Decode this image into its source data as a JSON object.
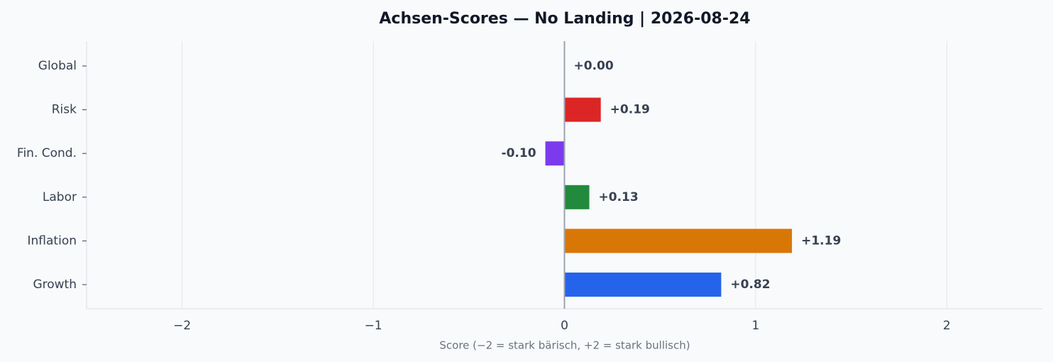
{
  "chart_data": {
    "type": "barh",
    "title": "Achsen-Scores — No Landing | 2026-08-24",
    "x_label": "Score (−2 = stark bärisch, +2 = stark bullisch)",
    "categories": [
      "Global",
      "Risk",
      "Fin. Cond.",
      "Labor",
      "Inflation",
      "Growth"
    ],
    "values": [
      0.0,
      0.19,
      -0.1,
      0.13,
      1.19,
      0.82
    ],
    "value_labels": [
      "+0.00",
      "+0.19",
      "-0.10",
      "+0.13",
      "+1.19",
      "+0.82"
    ],
    "colors": [
      "#6b7280",
      "#dc2626",
      "#7c3aed",
      "#218a3c",
      "#d97706",
      "#2563eb"
    ],
    "xlim": [
      -2.5,
      2.5
    ],
    "xticks": [
      {
        "value": -2,
        "label": "−2"
      },
      {
        "value": -1,
        "label": "−1"
      },
      0,
      1,
      2
    ],
    "grid": true
  }
}
